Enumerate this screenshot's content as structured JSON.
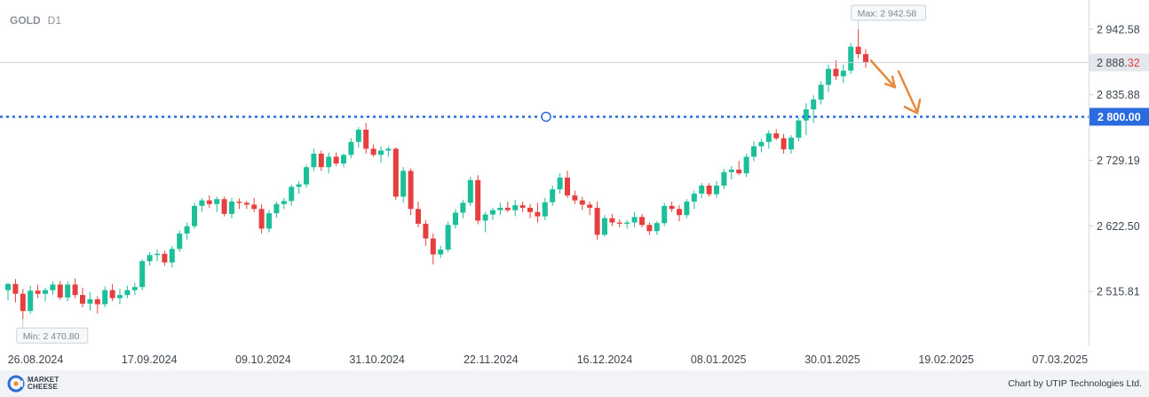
{
  "header": {
    "symbol": "GOLD",
    "timeframe": "D1"
  },
  "footer": {
    "brand_line1": "MARKET",
    "brand_line2": "CHEESE",
    "credit": "Chart by UTIP Technologies Ltd."
  },
  "chart_data": {
    "type": "candlestick",
    "ylim": [
      2425,
      2990
    ],
    "y_ticks": [
      {
        "value": 2942.58,
        "label": "2 942.58"
      },
      {
        "value": 2835.88,
        "label": "2 835.88"
      },
      {
        "value": 2729.19,
        "label": "2 729.19"
      },
      {
        "value": 2622.5,
        "label": "2 622.50"
      },
      {
        "value": 2515.81,
        "label": "2 515.81"
      }
    ],
    "x_ticks": [
      "26.08.2024",
      "17.09.2024",
      "09.10.2024",
      "31.10.2024",
      "22.11.2024",
      "16.12.2024",
      "08.01.2025",
      "30.01.2025",
      "19.02.2025",
      "07.03.2025"
    ],
    "current_price": {
      "value": 2888.32,
      "label_main": "2 888.",
      "label_tail": "32"
    },
    "level_line": {
      "value": 2800.0,
      "label": "2 800.00"
    },
    "max_label": "Max: 2 942.58",
    "min_label": "Min: 2 470.80",
    "annotation": "downward arrow",
    "colors": {
      "up": "#1bbf9a",
      "down": "#e5403f",
      "level": "#2a6be0",
      "arrow": "#e8893a",
      "price_box": "#e4e7ec"
    },
    "candles": [
      [
        2518,
        2530,
        2502,
        2528
      ],
      [
        2528,
        2536,
        2498,
        2512
      ],
      [
        2512,
        2520,
        2470.8,
        2484
      ],
      [
        2484,
        2525,
        2480,
        2517
      ],
      [
        2517,
        2527,
        2505,
        2512
      ],
      [
        2512,
        2522,
        2500,
        2518
      ],
      [
        2518,
        2532,
        2510,
        2527
      ],
      [
        2527,
        2533,
        2502,
        2506
      ],
      [
        2506,
        2532,
        2500,
        2527
      ],
      [
        2527,
        2537,
        2505,
        2510
      ],
      [
        2510,
        2522,
        2490,
        2496
      ],
      [
        2496,
        2515,
        2485,
        2503
      ],
      [
        2503,
        2508,
        2480,
        2495
      ],
      [
        2495,
        2524,
        2490,
        2518
      ],
      [
        2518,
        2528,
        2500,
        2505
      ],
      [
        2505,
        2520,
        2495,
        2510
      ],
      [
        2510,
        2525,
        2505,
        2518
      ],
      [
        2518,
        2530,
        2510,
        2523
      ],
      [
        2523,
        2568,
        2518,
        2565
      ],
      [
        2565,
        2580,
        2558,
        2575
      ],
      [
        2575,
        2584,
        2565,
        2577
      ],
      [
        2577,
        2582,
        2558,
        2563
      ],
      [
        2563,
        2590,
        2555,
        2585
      ],
      [
        2585,
        2615,
        2580,
        2610
      ],
      [
        2610,
        2628,
        2600,
        2622
      ],
      [
        2622,
        2660,
        2618,
        2655
      ],
      [
        2655,
        2668,
        2645,
        2664
      ],
      [
        2664,
        2672,
        2652,
        2658
      ],
      [
        2658,
        2670,
        2645,
        2666
      ],
      [
        2666,
        2670,
        2638,
        2642
      ],
      [
        2642,
        2668,
        2635,
        2662
      ],
      [
        2662,
        2667,
        2650,
        2660
      ],
      [
        2660,
        2663,
        2650,
        2657
      ],
      [
        2657,
        2668,
        2645,
        2650
      ],
      [
        2650,
        2658,
        2610,
        2618
      ],
      [
        2618,
        2648,
        2612,
        2643
      ],
      [
        2643,
        2662,
        2636,
        2658
      ],
      [
        2658,
        2668,
        2650,
        2663
      ],
      [
        2663,
        2690,
        2655,
        2686
      ],
      [
        2686,
        2695,
        2675,
        2690
      ],
      [
        2690,
        2722,
        2685,
        2718
      ],
      [
        2718,
        2748,
        2712,
        2740
      ],
      [
        2740,
        2745,
        2712,
        2718
      ],
      [
        2718,
        2742,
        2708,
        2735
      ],
      [
        2735,
        2742,
        2720,
        2724
      ],
      [
        2724,
        2740,
        2718,
        2738
      ],
      [
        2738,
        2765,
        2733,
        2759
      ],
      [
        2759,
        2783,
        2750,
        2779
      ],
      [
        2779,
        2790,
        2740,
        2748
      ],
      [
        2748,
        2755,
        2735,
        2738
      ],
      [
        2738,
        2752,
        2725,
        2745
      ],
      [
        2745,
        2752,
        2735,
        2748
      ],
      [
        2748,
        2750,
        2665,
        2670
      ],
      [
        2670,
        2718,
        2660,
        2712
      ],
      [
        2712,
        2716,
        2640,
        2650
      ],
      [
        2650,
        2662,
        2620,
        2626
      ],
      [
        2626,
        2632,
        2590,
        2602
      ],
      [
        2602,
        2610,
        2560,
        2576
      ],
      [
        2576,
        2590,
        2570,
        2584
      ],
      [
        2584,
        2630,
        2580,
        2624
      ],
      [
        2624,
        2650,
        2618,
        2644
      ],
      [
        2644,
        2665,
        2635,
        2660
      ],
      [
        2660,
        2702,
        2655,
        2697
      ],
      [
        2697,
        2705,
        2625,
        2631
      ],
      [
        2631,
        2645,
        2612,
        2641
      ],
      [
        2641,
        2652,
        2632,
        2648
      ],
      [
        2648,
        2660,
        2640,
        2652
      ],
      [
        2652,
        2662,
        2645,
        2648
      ],
      [
        2648,
        2665,
        2638,
        2656
      ],
      [
        2656,
        2662,
        2645,
        2652
      ],
      [
        2652,
        2658,
        2635,
        2645
      ],
      [
        2645,
        2660,
        2628,
        2638
      ],
      [
        2638,
        2668,
        2632,
        2661
      ],
      [
        2661,
        2688,
        2655,
        2682
      ],
      [
        2682,
        2708,
        2675,
        2701
      ],
      [
        2701,
        2712,
        2668,
        2672
      ],
      [
        2672,
        2680,
        2658,
        2664
      ],
      [
        2664,
        2670,
        2648,
        2657
      ],
      [
        2657,
        2662,
        2640,
        2652
      ],
      [
        2652,
        2662,
        2600,
        2608
      ],
      [
        2608,
        2640,
        2605,
        2635
      ],
      [
        2635,
        2642,
        2622,
        2628
      ],
      [
        2628,
        2633,
        2620,
        2626
      ],
      [
        2626,
        2632,
        2618,
        2628
      ],
      [
        2628,
        2645,
        2620,
        2637
      ],
      [
        2637,
        2642,
        2620,
        2624
      ],
      [
        2624,
        2628,
        2608,
        2614
      ],
      [
        2614,
        2630,
        2608,
        2627
      ],
      [
        2627,
        2660,
        2622,
        2655
      ],
      [
        2655,
        2662,
        2645,
        2650
      ],
      [
        2650,
        2656,
        2630,
        2640
      ],
      [
        2640,
        2666,
        2635,
        2662
      ],
      [
        2662,
        2680,
        2650,
        2675
      ],
      [
        2675,
        2692,
        2668,
        2688
      ],
      [
        2688,
        2692,
        2670,
        2674
      ],
      [
        2674,
        2695,
        2668,
        2688
      ],
      [
        2688,
        2715,
        2682,
        2710
      ],
      [
        2710,
        2720,
        2698,
        2714
      ],
      [
        2714,
        2728,
        2705,
        2708
      ],
      [
        2708,
        2740,
        2702,
        2735
      ],
      [
        2735,
        2760,
        2728,
        2752
      ],
      [
        2752,
        2764,
        2742,
        2759
      ],
      [
        2759,
        2778,
        2748,
        2773
      ],
      [
        2773,
        2780,
        2762,
        2765
      ],
      [
        2765,
        2772,
        2740,
        2747
      ],
      [
        2747,
        2770,
        2740,
        2766
      ],
      [
        2766,
        2798,
        2760,
        2794
      ],
      [
        2794,
        2822,
        2770,
        2812
      ],
      [
        2812,
        2835,
        2790,
        2828
      ],
      [
        2828,
        2858,
        2820,
        2852
      ],
      [
        2852,
        2885,
        2840,
        2878
      ],
      [
        2878,
        2892,
        2860,
        2866
      ],
      [
        2866,
        2885,
        2855,
        2875
      ],
      [
        2875,
        2920,
        2870,
        2914
      ],
      [
        2914,
        2942.58,
        2895,
        2902
      ],
      [
        2902,
        2910,
        2880,
        2888.32
      ]
    ]
  }
}
